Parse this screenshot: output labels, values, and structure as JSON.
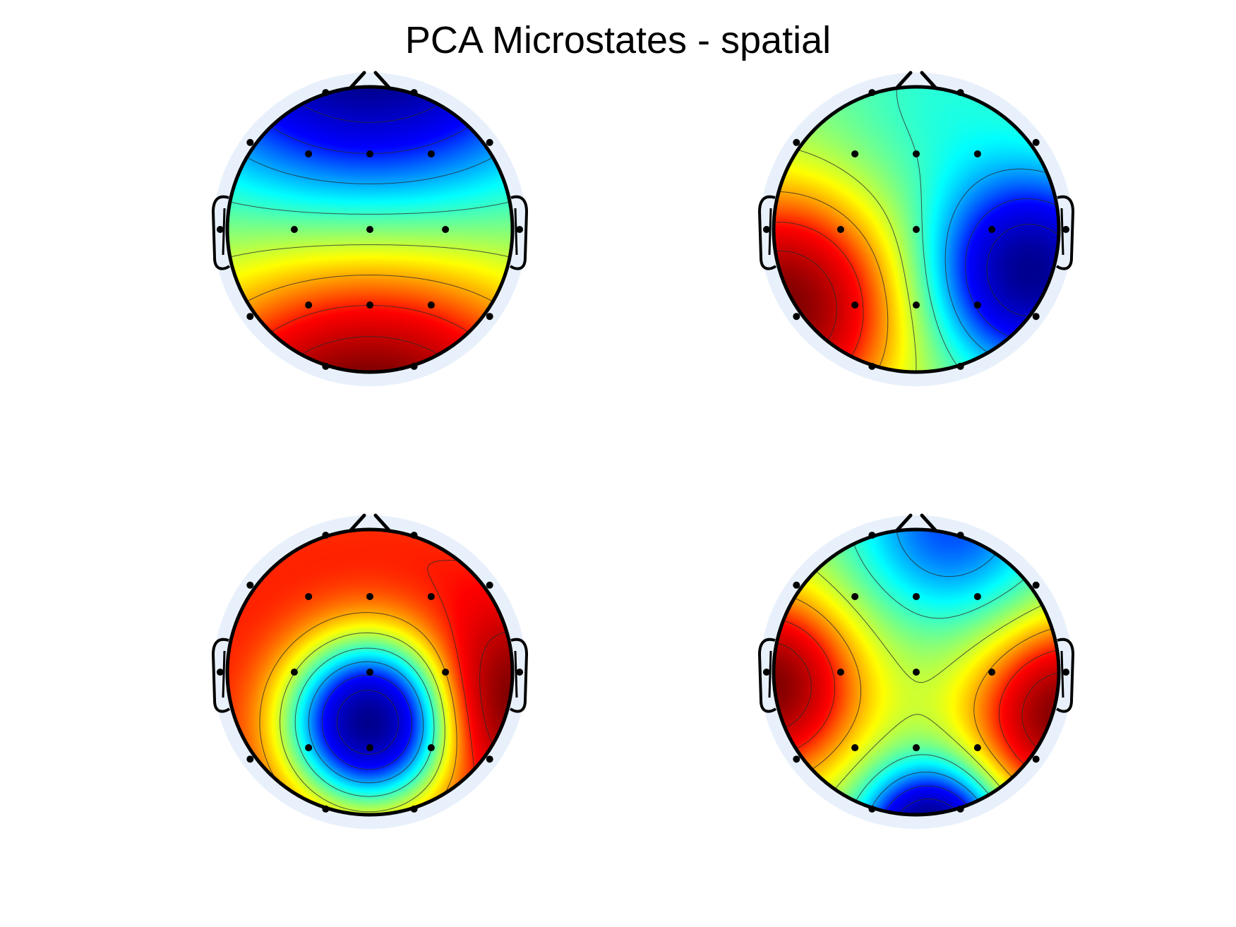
{
  "figure": {
    "title": "PCA Microstates - spatial"
  },
  "chart_data": {
    "type": "heatmap",
    "title": "PCA Microstates - spatial",
    "colormap": "jet",
    "colormap_stops": [
      "#00008f",
      "#0000ff",
      "#00ffff",
      "#ffff00",
      "#ff0000",
      "#800000"
    ],
    "head_outline_color": "#000000",
    "background_halo_color": "#e8f0fb",
    "electrodes": {
      "layout": "10-20 (19 channels)",
      "inner_positions": [
        [
          -0.43,
          -0.53
        ],
        [
          0,
          -0.53
        ],
        [
          0.43,
          -0.53
        ],
        [
          -0.53,
          0
        ],
        [
          0,
          0
        ],
        [
          0.53,
          0
        ],
        [
          -0.43,
          0.53
        ],
        [
          0,
          0.53
        ],
        [
          0.43,
          0.53
        ]
      ],
      "rim_positions": [
        [
          -0.31,
          -0.96
        ],
        [
          0.31,
          -0.96
        ],
        [
          -0.84,
          -0.61
        ],
        [
          0.84,
          -0.61
        ],
        [
          -1.05,
          0
        ],
        [
          1.05,
          0
        ],
        [
          -0.84,
          0.61
        ],
        [
          0.84,
          0.61
        ],
        [
          -0.31,
          0.96
        ],
        [
          0.31,
          0.96
        ]
      ]
    },
    "maps": [
      {
        "index": 1,
        "pattern": "anterior-posterior gradient",
        "sources": [
          {
            "x": 0,
            "y": -1.6,
            "w": -1.0,
            "s": 0.9
          },
          {
            "x": 0,
            "y": 1.6,
            "w": 1.0,
            "s": 0.9
          }
        ]
      },
      {
        "index": 2,
        "pattern": "left-posterior positive / right-posterior negative",
        "sources": [
          {
            "x": -0.95,
            "y": 0.55,
            "w": 1.0,
            "s": 0.55
          },
          {
            "x": 0.8,
            "y": 0.3,
            "w": -1.0,
            "s": 0.45
          },
          {
            "x": 0.2,
            "y": -0.9,
            "w": -0.15,
            "s": 0.6
          }
        ]
      },
      {
        "index": 3,
        "pattern": "central-posterior minimum, positive rim",
        "sources": [
          {
            "x": 0,
            "y": 0.35,
            "w": -1.25,
            "s": 0.42
          },
          {
            "x": 0,
            "y": 0.35,
            "w": 0.6,
            "s": 2.0
          },
          {
            "x": 1.0,
            "y": 0.2,
            "w": 0.35,
            "s": 0.4
          }
        ]
      },
      {
        "index": 4,
        "pattern": "quadrupolar (saddle)",
        "sources": [
          {
            "x": -1.05,
            "y": 0.1,
            "w": 0.9,
            "s": 0.42
          },
          {
            "x": 1.05,
            "y": 0.3,
            "w": 0.9,
            "s": 0.42
          },
          {
            "x": 0.1,
            "y": 1.15,
            "w": -1.2,
            "s": 0.32
          },
          {
            "x": 0.25,
            "y": -1.05,
            "w": -0.55,
            "s": 0.5
          }
        ]
      }
    ]
  }
}
